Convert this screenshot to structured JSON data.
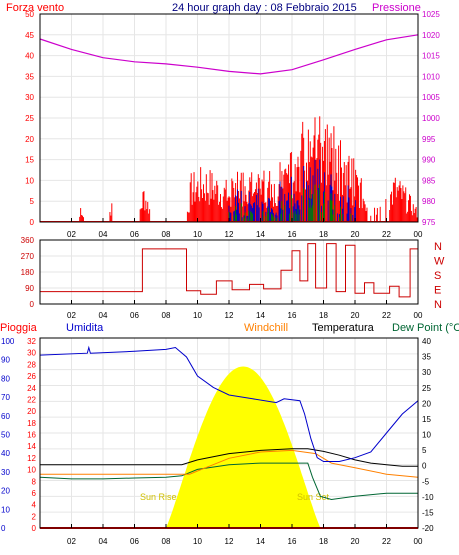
{
  "colors": {
    "wind": "#ff0000",
    "gust_mid": "#0000c8",
    "gust_dark": "#008000",
    "pressure": "#cc00cc",
    "direction": "#cc0000",
    "humidity": "#0000cc",
    "windchill": "#ff8000",
    "temperature": "#000000",
    "dewpoint": "#006633",
    "rain": "#ff0000",
    "sun": "#ffff00",
    "title": "#000080",
    "grid": "#e6e6e6"
  },
  "header": {
    "title": "24 hour graph day : 08 Febbraio 2015",
    "left_label": "Forza vento",
    "right_label": "Pressione"
  },
  "legend2": {
    "pioggia": "Pioggia",
    "umidita": "Umidita",
    "windchill": "Windchill",
    "temperatura": "Temperatura",
    "dewpoint": "Dew Point (°C"
  },
  "compass": [
    "N",
    "W",
    "S",
    "E",
    "N"
  ],
  "sunrise_label": "Sun Rise",
  "sunset_label": "Sun Set",
  "chart_data": [
    {
      "type": "line",
      "title": "24 hour graph day : 08 Febbraio 2015",
      "series": [
        {
          "name": "Forza vento",
          "axis": "left"
        },
        {
          "name": "Pressione",
          "axis": "right",
          "x": [
            0,
            2,
            4,
            6,
            8,
            10,
            12,
            14,
            16,
            18,
            20,
            22,
            24
          ],
          "y": [
            1019,
            1016.5,
            1014.5,
            1013.5,
            1013,
            1012.2,
            1011.2,
            1010.6,
            1011.6,
            1014,
            1016.5,
            1018.8,
            1020
          ]
        }
      ],
      "x_ticks": [
        "02",
        "04",
        "06",
        "08",
        "10",
        "12",
        "14",
        "16",
        "18",
        "20",
        "22",
        "00"
      ],
      "left_ticks": [
        "50",
        "45",
        "40",
        "35",
        "30",
        "25",
        "20",
        "15",
        "10",
        "5",
        "0"
      ],
      "right_ticks": [
        "1025",
        "1020",
        "1015",
        "1010",
        "1005",
        "1000",
        "995",
        "990",
        "985",
        "980",
        "975"
      ],
      "ylim_left": [
        0,
        50
      ],
      "ylim_right": [
        975,
        1025
      ],
      "grid": true
    },
    {
      "type": "line",
      "series": [
        {
          "name": "direction",
          "x": [
            0,
            6.5,
            6.5,
            9.3,
            9.3,
            10.2,
            10.2,
            11.2,
            11.2,
            12.2,
            12.2,
            13.3,
            13.3,
            14.2,
            14.2,
            15.3,
            15.3,
            16,
            16,
            16.5,
            16.5,
            17,
            17,
            17.5,
            17.5,
            18.2,
            18.2,
            18.8,
            18.8,
            19.4,
            19.4,
            20,
            20,
            20.6,
            20.6,
            21.2,
            21.2,
            22.2,
            22.2,
            22.8,
            22.8,
            23.5,
            23.5,
            24
          ],
          "y": [
            70,
            70,
            310,
            310,
            75,
            75,
            55,
            55,
            130,
            130,
            80,
            80,
            110,
            110,
            85,
            85,
            190,
            190,
            300,
            300,
            130,
            130,
            340,
            340,
            90,
            90,
            340,
            340,
            70,
            70,
            330,
            330,
            60,
            60,
            120,
            120,
            60,
            60,
            100,
            100,
            40,
            40,
            310,
            310
          ]
        }
      ],
      "x_ticks": [
        "02",
        "04",
        "06",
        "08",
        "10",
        "12",
        "14",
        "16",
        "18",
        "20",
        "22",
        "00"
      ],
      "left_ticks": [
        "360",
        "270",
        "180",
        "90",
        "0"
      ],
      "ylim": [
        0,
        360
      ]
    },
    {
      "type": "line",
      "series": [
        {
          "name": "Umidita",
          "axis": "humidity",
          "x": [
            0,
            3,
            3.1,
            3.2,
            6,
            8,
            8.6,
            9.3,
            10,
            11,
            12,
            13.5,
            15,
            15.5,
            16.5,
            16.8,
            17.2,
            17.6,
            18,
            19,
            20,
            21,
            22,
            23,
            24
          ],
          "y": [
            91,
            92,
            95,
            92,
            93,
            94,
            95,
            90,
            80,
            74,
            70,
            68,
            66,
            68,
            67,
            60,
            47,
            37,
            35,
            35,
            37,
            40,
            50,
            60,
            67
          ]
        },
        {
          "name": "Windchill",
          "axis": "temp",
          "x": [
            0,
            6.5,
            8.5,
            9.5,
            10.5,
            12,
            14,
            16,
            17.5,
            18.5,
            20,
            22,
            24
          ],
          "y": [
            -3,
            -3,
            -3,
            -3,
            -1,
            2,
            4,
            4.5,
            3.5,
            0.5,
            -1,
            -3,
            -4
          ]
        },
        {
          "name": "Temperatura",
          "axis": "temp",
          "x": [
            0,
            8,
            9,
            10,
            12,
            14,
            16,
            17,
            18,
            19,
            20,
            21,
            22,
            23,
            24
          ],
          "y": [
            0,
            0,
            0,
            1.5,
            3.5,
            4.5,
            5,
            5,
            4.2,
            3,
            1.5,
            0.5,
            0,
            -0.5,
            -0.5
          ]
        },
        {
          "name": "Dew Point (°C",
          "axis": "temp",
          "x": [
            0,
            2,
            4,
            6,
            8,
            9,
            10,
            12,
            14,
            16,
            17,
            17.3,
            17.8,
            18.5,
            20,
            22,
            24
          ],
          "y": [
            -4,
            -4.5,
            -4.5,
            -4.2,
            -4,
            -3.5,
            -1.5,
            0,
            0.5,
            0.5,
            0.5,
            -4,
            -10,
            -11,
            -10,
            -9,
            -9
          ]
        },
        {
          "name": "Pioggia",
          "axis": "rain",
          "x": [
            0,
            24
          ],
          "y": [
            0,
            0
          ]
        }
      ],
      "sun": {
        "rise": 8.0,
        "set": 17.8,
        "peak_temp_units": 31
      },
      "x_ticks": [
        "02",
        "04",
        "06",
        "08",
        "10",
        "12",
        "14",
        "16",
        "18",
        "20",
        "22",
        "00"
      ],
      "humidity_ticks": [
        "100",
        "90",
        "80",
        "70",
        "60",
        "50",
        "40",
        "30",
        "20",
        "10",
        "0"
      ],
      "rain_ticks": [
        "32",
        "30",
        "28",
        "26",
        "24",
        "22",
        "20",
        "18",
        "16",
        "14",
        "12",
        "10",
        "8",
        "6",
        "4",
        "2",
        "0"
      ],
      "temp_ticks": [
        "40",
        "35",
        "30",
        "25",
        "20",
        "15",
        "10",
        "5",
        "0",
        "-5",
        "-10",
        "-15",
        "-20"
      ],
      "ylim_humidity": [
        0,
        100
      ],
      "ylim_rain": [
        0,
        32
      ],
      "ylim_temp": [
        -20,
        40
      ],
      "grid": true
    }
  ]
}
